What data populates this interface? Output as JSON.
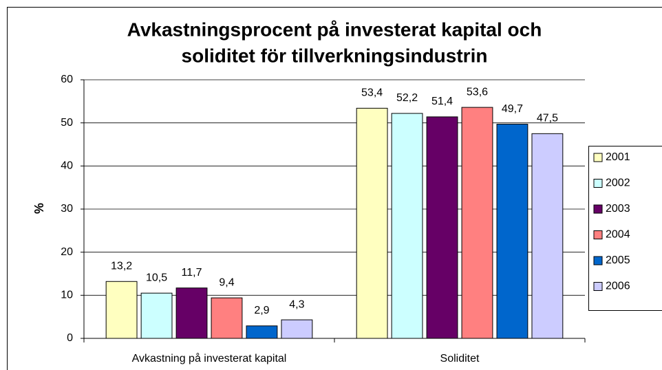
{
  "chart_data": {
    "type": "bar",
    "title": [
      "Avkastningsprocent på investerat kapital och",
      "soliditet för tillverkningsindustrin"
    ],
    "ylabel": "%",
    "categories": [
      "Avkastning på investerat kapital",
      "Soliditet"
    ],
    "series": [
      {
        "name": "2001",
        "color": "#ffffc0",
        "values": [
          13.2,
          53.4
        ],
        "value_labels": [
          "13,2",
          "53,4"
        ]
      },
      {
        "name": "2002",
        "color": "#ccffff",
        "values": [
          10.5,
          52.2
        ],
        "value_labels": [
          "10,5",
          "52,2"
        ]
      },
      {
        "name": "2003",
        "color": "#660066",
        "values": [
          11.7,
          51.4
        ],
        "value_labels": [
          "11,7",
          "51,4"
        ]
      },
      {
        "name": "2004",
        "color": "#ff8080",
        "values": [
          9.4,
          53.6
        ],
        "value_labels": [
          "9,4",
          "53,6"
        ]
      },
      {
        "name": "2005",
        "color": "#0066cc",
        "values": [
          2.9,
          49.7
        ],
        "value_labels": [
          "2,9",
          "49,7"
        ]
      },
      {
        "name": "2006",
        "color": "#ccccff",
        "values": [
          4.3,
          47.5
        ],
        "value_labels": [
          "4,3",
          "47,5"
        ]
      }
    ],
    "ylim": [
      0,
      60
    ],
    "yticks": [
      0,
      10,
      20,
      30,
      40,
      50,
      60
    ],
    "grid": true,
    "legend": "right"
  }
}
